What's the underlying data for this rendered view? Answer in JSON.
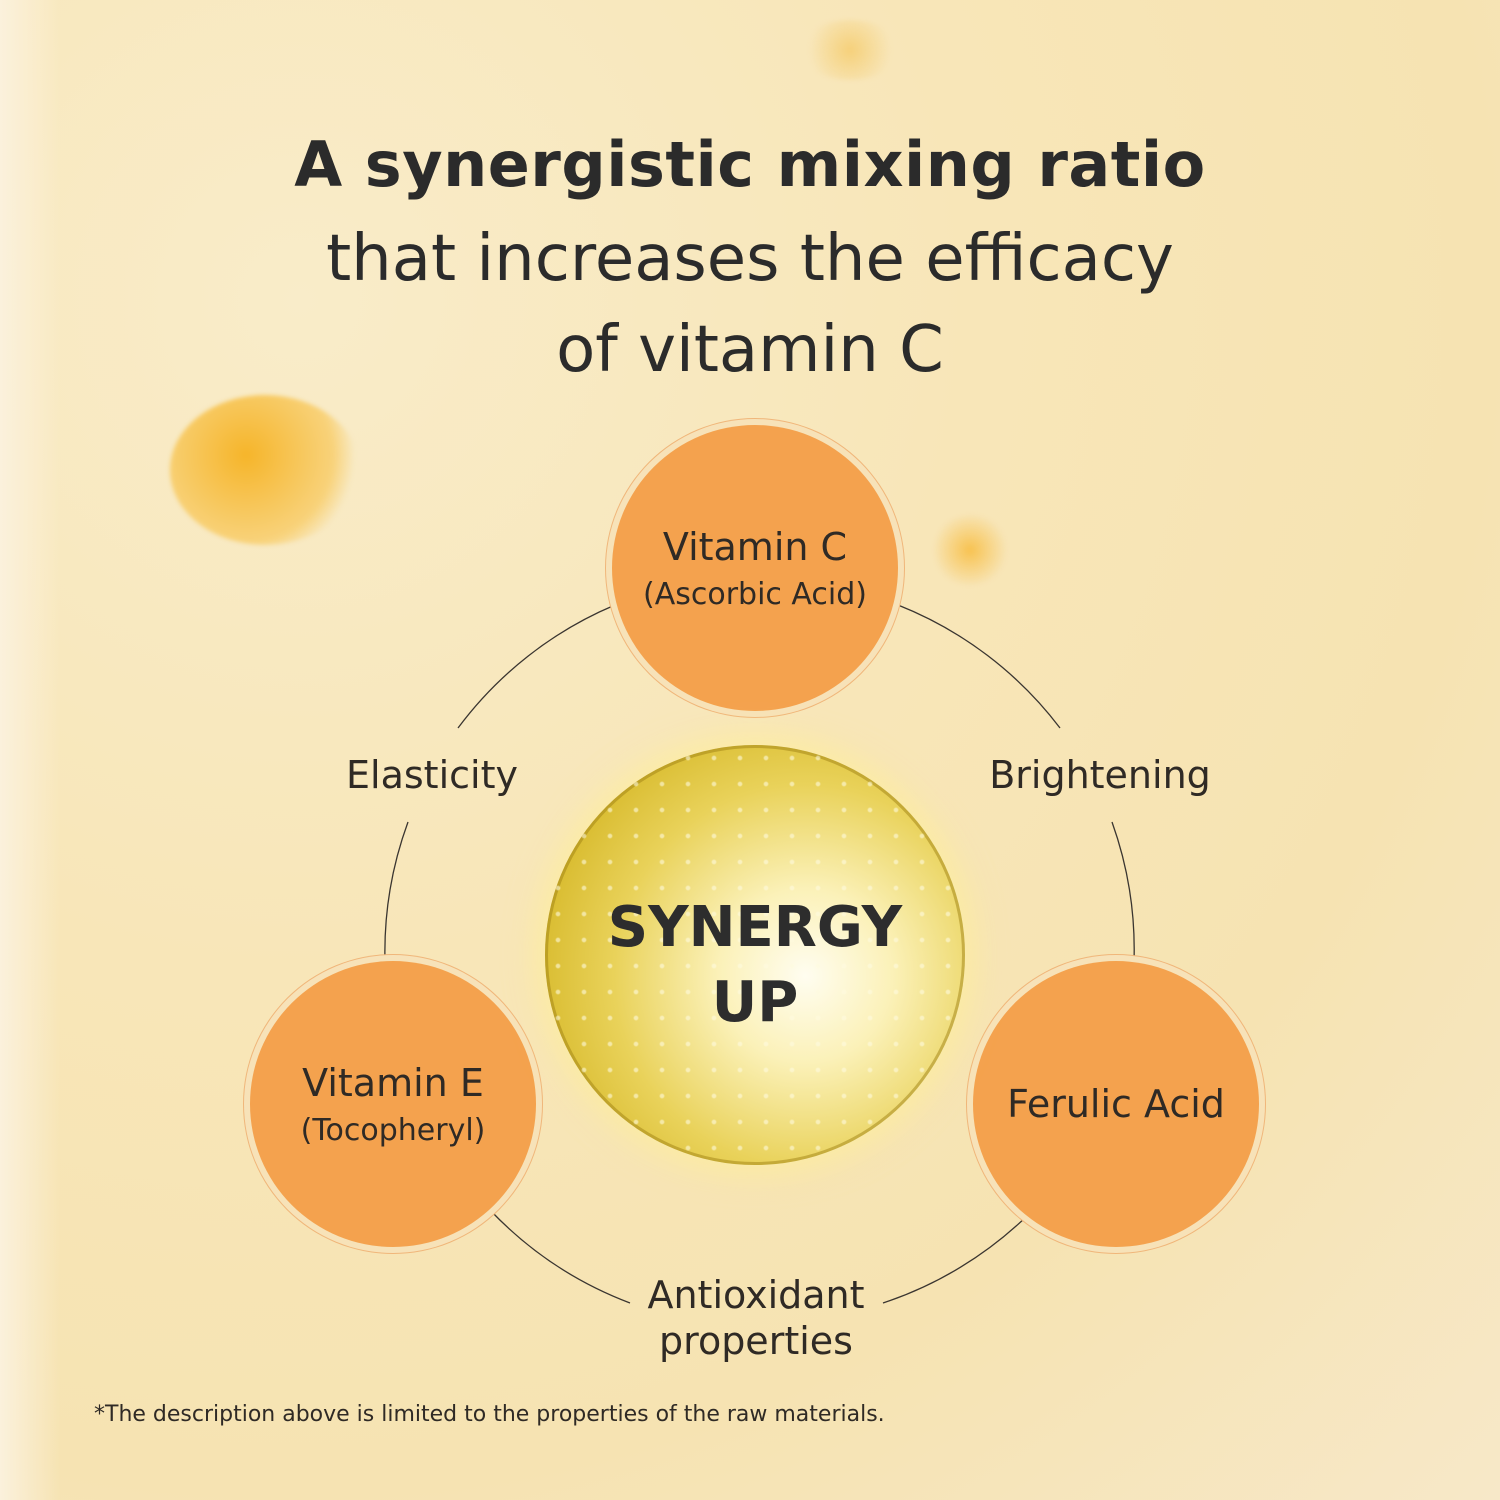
{
  "headline": {
    "line1": "A synergistic mixing ratio",
    "line2": "that increases the efficacy",
    "line3": "of vitamin C"
  },
  "nodes": {
    "vitamin_c": {
      "name": "Vitamin C",
      "sub": "(Ascorbic Acid)"
    },
    "vitamin_e": {
      "name": "Vitamin E",
      "sub": "(Tocopheryl)"
    },
    "ferulic": {
      "name": "Ferulic Acid"
    }
  },
  "center": {
    "line1": "SYNERGY",
    "line2": "UP"
  },
  "benefits": {
    "elasticity": "Elasticity",
    "brightening": "Brightening",
    "antioxidant_line1": "Antioxidant",
    "antioxidant_line2": "properties"
  },
  "footnote": "*The description above is limited to the properties of the raw materials.",
  "colors": {
    "node": "#f4a24e",
    "background": "#f8e6b8",
    "text": "#2b2b2b"
  }
}
